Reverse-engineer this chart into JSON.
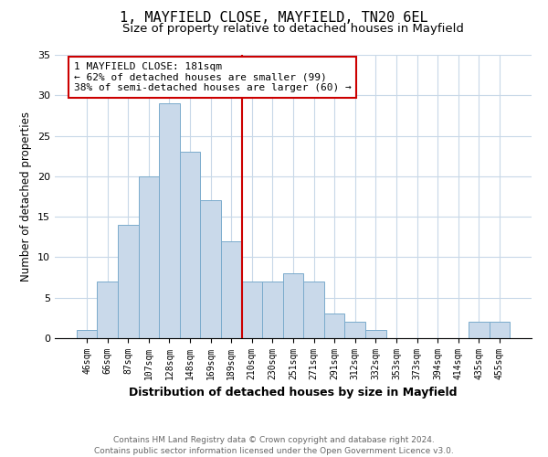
{
  "title": "1, MAYFIELD CLOSE, MAYFIELD, TN20 6EL",
  "subtitle": "Size of property relative to detached houses in Mayfield",
  "xlabel": "Distribution of detached houses by size in Mayfield",
  "ylabel": "Number of detached properties",
  "bar_labels": [
    "46sqm",
    "66sqm",
    "87sqm",
    "107sqm",
    "128sqm",
    "148sqm",
    "169sqm",
    "189sqm",
    "210sqm",
    "230sqm",
    "251sqm",
    "271sqm",
    "291sqm",
    "312sqm",
    "332sqm",
    "353sqm",
    "373sqm",
    "394sqm",
    "414sqm",
    "435sqm",
    "455sqm"
  ],
  "bar_values": [
    1,
    7,
    14,
    20,
    29,
    23,
    17,
    12,
    7,
    7,
    8,
    7,
    3,
    2,
    1,
    0,
    0,
    0,
    0,
    2,
    2
  ],
  "bar_color": "#c9d9ea",
  "bar_edgecolor": "#7aabcc",
  "vline_x": 7.5,
  "vline_color": "#cc0000",
  "annotation_text": "1 MAYFIELD CLOSE: 181sqm\n← 62% of detached houses are smaller (99)\n38% of semi-detached houses are larger (60) →",
  "annotation_box_color": "#ffffff",
  "annotation_box_edgecolor": "#cc0000",
  "ylim": [
    0,
    35
  ],
  "yticks": [
    0,
    5,
    10,
    15,
    20,
    25,
    30,
    35
  ],
  "footnote": "Contains HM Land Registry data © Crown copyright and database right 2024.\nContains public sector information licensed under the Open Government Licence v3.0.",
  "background_color": "#ffffff",
  "grid_color": "#c8d8e8",
  "title_fontsize": 11,
  "subtitle_fontsize": 9.5,
  "xlabel_fontsize": 9,
  "ylabel_fontsize": 8.5,
  "tick_fontsize": 7,
  "footnote_fontsize": 6.5,
  "annotation_fontsize": 8
}
